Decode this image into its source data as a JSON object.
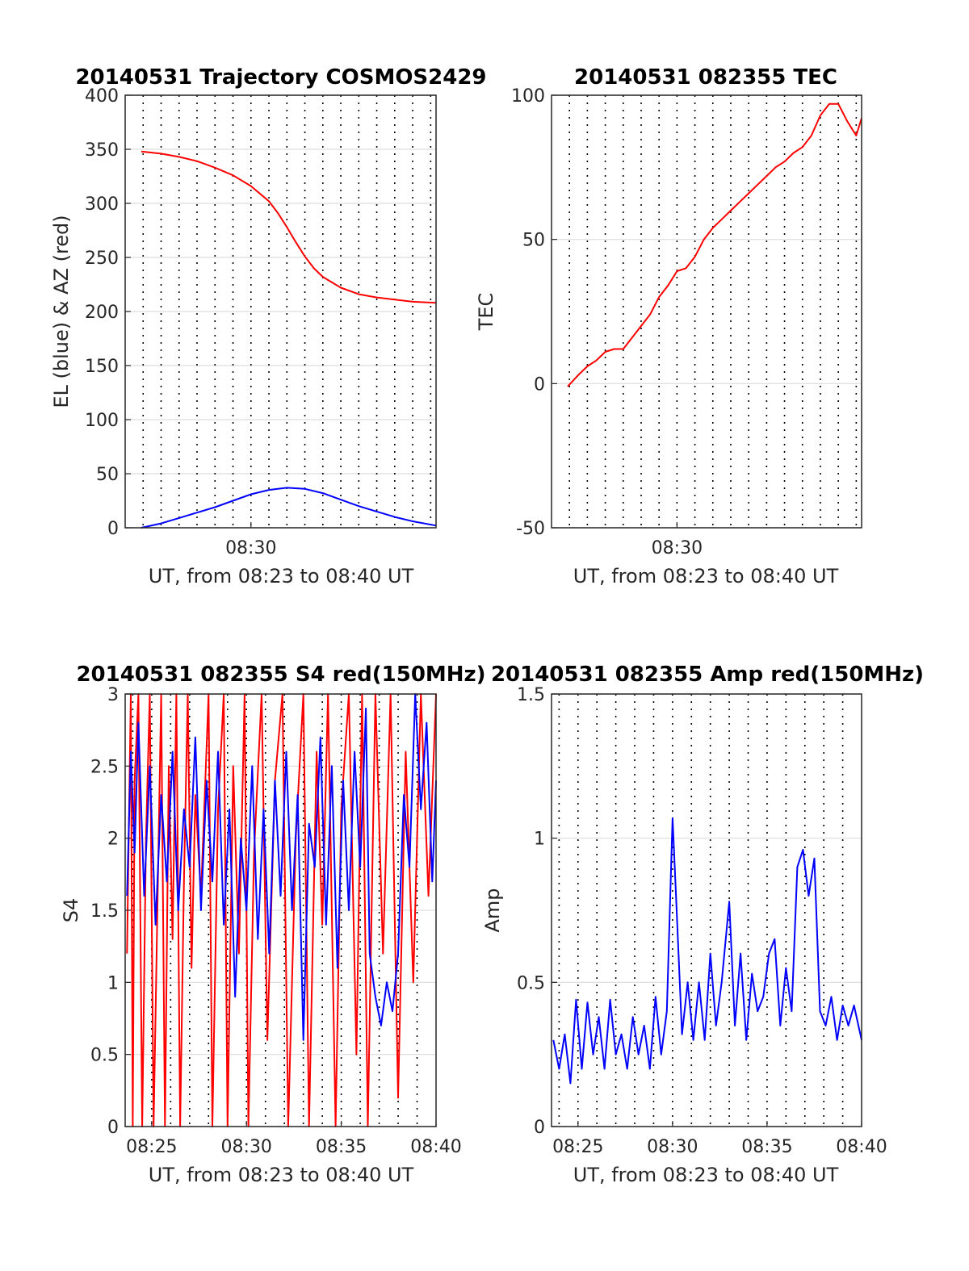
{
  "colors": {
    "red": "#ff0000",
    "blue": "#0000ff",
    "grid": "#dddddd",
    "axis": "#262626"
  },
  "chart_data": [
    {
      "id": "trajectory",
      "type": "line",
      "title": "20140531 Trajectory COSMOS2429",
      "xlabel": "UT, from 08:23 to 08:40 UT",
      "ylabel": "EL (blue) & AZ (red)",
      "x_unit": "minutes after 08:23 UT",
      "xlim": [
        0,
        17.3
      ],
      "ylim": [
        0,
        400
      ],
      "yticks": [
        0,
        50,
        100,
        150,
        200,
        250,
        300,
        350,
        400
      ],
      "xticks": [
        {
          "v": 7,
          "label": "08:30"
        }
      ],
      "grid": {
        "horizontal": true,
        "vertical_dotted": true
      },
      "series": [
        {
          "name": "AZ",
          "color": "#ff0000",
          "points": [
            [
              0.9,
              348
            ],
            [
              2,
              346
            ],
            [
              3,
              343
            ],
            [
              4,
              339
            ],
            [
              5,
              333
            ],
            [
              6,
              326
            ],
            [
              7,
              316
            ],
            [
              8,
              302
            ],
            [
              8.5,
              291
            ],
            [
              9,
              278
            ],
            [
              9.5,
              264
            ],
            [
              10,
              251
            ],
            [
              10.5,
              240
            ],
            [
              11,
              232
            ],
            [
              12,
              222
            ],
            [
              13,
              216
            ],
            [
              14,
              213
            ],
            [
              15,
              211
            ],
            [
              16,
              209
            ],
            [
              17.3,
              208
            ]
          ]
        },
        {
          "name": "EL",
          "color": "#0000ff",
          "points": [
            [
              0.9,
              0
            ],
            [
              2,
              4
            ],
            [
              3,
              9
            ],
            [
              4,
              14
            ],
            [
              5,
              19
            ],
            [
              6,
              25
            ],
            [
              7,
              31
            ],
            [
              8,
              35
            ],
            [
              9,
              37
            ],
            [
              10,
              36
            ],
            [
              11,
              32
            ],
            [
              12,
              26
            ],
            [
              13,
              20
            ],
            [
              14,
              15
            ],
            [
              15,
              10
            ],
            [
              16,
              6
            ],
            [
              17.3,
              2
            ]
          ]
        }
      ]
    },
    {
      "id": "tec",
      "type": "line",
      "title": "20140531 082355 TEC",
      "xlabel": "UT, from 08:23 to 08:40 UT",
      "ylabel": "TEC",
      "x_unit": "minutes after 08:23 UT",
      "xlim": [
        0,
        17.3
      ],
      "ylim": [
        -50,
        100
      ],
      "yticks": [
        -50,
        0,
        50,
        100
      ],
      "xticks": [
        {
          "v": 7,
          "label": "08:30"
        }
      ],
      "grid": {
        "horizontal": true,
        "vertical_dotted": true
      },
      "series": [
        {
          "name": "TEC",
          "color": "#ff0000",
          "points": [
            [
              0.9,
              -1
            ],
            [
              1.5,
              3
            ],
            [
              2,
              6
            ],
            [
              2.5,
              8
            ],
            [
              3,
              11
            ],
            [
              3.5,
              12
            ],
            [
              4,
              12
            ],
            [
              4.5,
              16
            ],
            [
              5,
              20
            ],
            [
              5.5,
              24
            ],
            [
              6,
              30
            ],
            [
              6.5,
              34
            ],
            [
              7,
              39
            ],
            [
              7.5,
              40
            ],
            [
              8,
              44
            ],
            [
              8.5,
              50
            ],
            [
              9,
              54
            ],
            [
              9.5,
              57
            ],
            [
              10,
              60
            ],
            [
              10.5,
              63
            ],
            [
              11,
              66
            ],
            [
              11.5,
              69
            ],
            [
              12,
              72
            ],
            [
              12.5,
              75
            ],
            [
              13,
              77
            ],
            [
              13.5,
              80
            ],
            [
              14,
              82
            ],
            [
              14.5,
              86
            ],
            [
              15,
              93
            ],
            [
              15.5,
              97
            ],
            [
              16,
              97
            ],
            [
              16.5,
              91
            ],
            [
              17,
              86
            ],
            [
              17.3,
              92
            ]
          ]
        }
      ]
    },
    {
      "id": "s4",
      "type": "line",
      "title": "20140531 082355 S4 red(150MHz)",
      "xlabel": "UT, from 08:23 to 08:40 UT",
      "ylabel": "S4",
      "x_unit": "minutes after 08:23 UT",
      "xlim": [
        0.6,
        17.0
      ],
      "ylim": [
        0,
        3
      ],
      "yticks": [
        0,
        0.5,
        1,
        1.5,
        2,
        2.5,
        3
      ],
      "xticks": [
        {
          "v": 2,
          "label": "08:25"
        },
        {
          "v": 7,
          "label": "08:30"
        },
        {
          "v": 12,
          "label": "08:35"
        },
        {
          "v": 17,
          "label": "08:40"
        }
      ],
      "grid": {
        "horizontal": true,
        "vertical_dotted": true
      },
      "series": [
        {
          "name": "S4 red",
          "color": "#ff0000",
          "points": [
            [
              0.7,
              1.2
            ],
            [
              0.9,
              3
            ],
            [
              1.0,
              0
            ],
            [
              1.1,
              2.4
            ],
            [
              1.3,
              3
            ],
            [
              1.5,
              0
            ],
            [
              1.7,
              2.0
            ],
            [
              1.9,
              3
            ],
            [
              2.1,
              0
            ],
            [
              2.3,
              1.5
            ],
            [
              2.5,
              3
            ],
            [
              2.7,
              0
            ],
            [
              2.9,
              2.5
            ],
            [
              3.1,
              1.3
            ],
            [
              3.3,
              3
            ],
            [
              3.5,
              0
            ],
            [
              3.7,
              1.7
            ],
            [
              3.9,
              3
            ],
            [
              4.1,
              1.1
            ],
            [
              4.3,
              2.3
            ],
            [
              4.6,
              1.6
            ],
            [
              5.0,
              3
            ],
            [
              5.2,
              0
            ],
            [
              5.5,
              2.2
            ],
            [
              5.8,
              3
            ],
            [
              6.0,
              0
            ],
            [
              6.3,
              2.5
            ],
            [
              6.6,
              1.2
            ],
            [
              6.9,
              3
            ],
            [
              7.1,
              0
            ],
            [
              7.4,
              1.9
            ],
            [
              7.8,
              3
            ],
            [
              8.1,
              0.6
            ],
            [
              8.5,
              2.4
            ],
            [
              8.9,
              3
            ],
            [
              9.2,
              0
            ],
            [
              9.6,
              2.0
            ],
            [
              10.0,
              3
            ],
            [
              10.3,
              0
            ],
            [
              10.7,
              2.6
            ],
            [
              11.0,
              1.4
            ],
            [
              11.3,
              3
            ],
            [
              11.7,
              0
            ],
            [
              12.0,
              2.2
            ],
            [
              12.4,
              3
            ],
            [
              12.8,
              0.5
            ],
            [
              13.1,
              3
            ],
            [
              13.4,
              0
            ],
            [
              13.8,
              3
            ],
            [
              14.2,
              1.2
            ],
            [
              14.6,
              3
            ],
            [
              15.0,
              0.2
            ],
            [
              15.4,
              2.6
            ],
            [
              15.8,
              1.0
            ],
            [
              16.2,
              3
            ],
            [
              16.6,
              1.6
            ],
            [
              17.0,
              3
            ]
          ]
        },
        {
          "name": "S4 blue",
          "color": "#0000ff",
          "points": [
            [
              0.7,
              1.6
            ],
            [
              0.9,
              2.6
            ],
            [
              1.1,
              1.9
            ],
            [
              1.3,
              2.8
            ],
            [
              1.6,
              1.6
            ],
            [
              1.9,
              2.5
            ],
            [
              2.2,
              1.4
            ],
            [
              2.5,
              2.3
            ],
            [
              2.8,
              1.7
            ],
            [
              3.1,
              2.6
            ],
            [
              3.4,
              1.5
            ],
            [
              3.7,
              2.2
            ],
            [
              4.0,
              1.8
            ],
            [
              4.3,
              2.7
            ],
            [
              4.6,
              1.5
            ],
            [
              4.9,
              2.4
            ],
            [
              5.2,
              1.7
            ],
            [
              5.5,
              2.6
            ],
            [
              5.8,
              1.4
            ],
            [
              6.1,
              2.2
            ],
            [
              6.4,
              0.9
            ],
            [
              6.7,
              2.0
            ],
            [
              7.0,
              1.5
            ],
            [
              7.3,
              2.5
            ],
            [
              7.6,
              1.3
            ],
            [
              7.9,
              2.2
            ],
            [
              8.2,
              1.2
            ],
            [
              8.5,
              2.4
            ],
            [
              8.8,
              1.6
            ],
            [
              9.1,
              2.6
            ],
            [
              9.4,
              1.5
            ],
            [
              9.7,
              2.3
            ],
            [
              10.0,
              0.6
            ],
            [
              10.3,
              2.1
            ],
            [
              10.6,
              1.8
            ],
            [
              10.9,
              2.7
            ],
            [
              11.2,
              1.4
            ],
            [
              11.5,
              2.5
            ],
            [
              11.8,
              1.1
            ],
            [
              12.1,
              2.4
            ],
            [
              12.4,
              1.5
            ],
            [
              12.7,
              2.6
            ],
            [
              13.0,
              1.8
            ],
            [
              13.3,
              2.9
            ],
            [
              13.5,
              1.2
            ],
            [
              13.8,
              0.9
            ],
            [
              14.1,
              0.7
            ],
            [
              14.4,
              1.0
            ],
            [
              14.7,
              0.8
            ],
            [
              15.0,
              1.2
            ],
            [
              15.3,
              2.3
            ],
            [
              15.6,
              1.8
            ],
            [
              15.9,
              3
            ],
            [
              16.2,
              2.2
            ],
            [
              16.5,
              2.8
            ],
            [
              16.8,
              1.7
            ],
            [
              17.0,
              2.4
            ]
          ]
        }
      ]
    },
    {
      "id": "amp",
      "type": "line",
      "title": "20140531 082355 Amp red(150MHz)",
      "xlabel": "UT, from 08:23 to 08:40 UT",
      "ylabel": "Amp",
      "x_unit": "minutes after 08:23 UT",
      "xlim": [
        0.6,
        17.0
      ],
      "ylim": [
        0,
        1.5
      ],
      "yticks": [
        0,
        0.5,
        1,
        1.5
      ],
      "xticks": [
        {
          "v": 2,
          "label": "08:25"
        },
        {
          "v": 7,
          "label": "08:30"
        },
        {
          "v": 12,
          "label": "08:35"
        },
        {
          "v": 17,
          "label": "08:40"
        }
      ],
      "grid": {
        "horizontal": true,
        "vertical_dotted": true
      },
      "series": [
        {
          "name": "Amp",
          "color": "#0000ff",
          "points": [
            [
              0.7,
              0.3
            ],
            [
              1.0,
              0.2
            ],
            [
              1.3,
              0.32
            ],
            [
              1.6,
              0.15
            ],
            [
              1.9,
              0.44
            ],
            [
              2.2,
              0.2
            ],
            [
              2.5,
              0.43
            ],
            [
              2.8,
              0.25
            ],
            [
              3.1,
              0.38
            ],
            [
              3.4,
              0.2
            ],
            [
              3.7,
              0.44
            ],
            [
              4.0,
              0.25
            ],
            [
              4.3,
              0.32
            ],
            [
              4.6,
              0.2
            ],
            [
              4.9,
              0.38
            ],
            [
              5.2,
              0.25
            ],
            [
              5.5,
              0.35
            ],
            [
              5.8,
              0.2
            ],
            [
              6.1,
              0.45
            ],
            [
              6.4,
              0.25
            ],
            [
              6.7,
              0.4
            ],
            [
              7.0,
              1.07
            ],
            [
              7.2,
              0.78
            ],
            [
              7.5,
              0.32
            ],
            [
              7.8,
              0.5
            ],
            [
              8.1,
              0.3
            ],
            [
              8.4,
              0.5
            ],
            [
              8.7,
              0.3
            ],
            [
              9.0,
              0.6
            ],
            [
              9.3,
              0.35
            ],
            [
              9.6,
              0.5
            ],
            [
              10.0,
              0.78
            ],
            [
              10.3,
              0.35
            ],
            [
              10.6,
              0.6
            ],
            [
              10.9,
              0.3
            ],
            [
              11.2,
              0.53
            ],
            [
              11.5,
              0.4
            ],
            [
              11.8,
              0.45
            ],
            [
              12.1,
              0.6
            ],
            [
              12.4,
              0.65
            ],
            [
              12.7,
              0.35
            ],
            [
              13.0,
              0.55
            ],
            [
              13.3,
              0.4
            ],
            [
              13.6,
              0.9
            ],
            [
              13.9,
              0.96
            ],
            [
              14.2,
              0.8
            ],
            [
              14.5,
              0.93
            ],
            [
              14.8,
              0.4
            ],
            [
              15.1,
              0.35
            ],
            [
              15.4,
              0.45
            ],
            [
              15.7,
              0.3
            ],
            [
              16.0,
              0.42
            ],
            [
              16.3,
              0.35
            ],
            [
              16.6,
              0.42
            ],
            [
              17.0,
              0.3
            ]
          ]
        }
      ]
    }
  ]
}
